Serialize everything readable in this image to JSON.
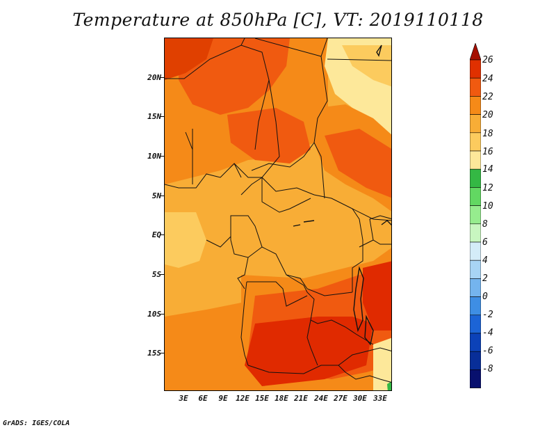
{
  "title": "Temperature at 850hPa [C], VT: 2019110118",
  "footer": "GrADS: IGES/COLA",
  "lat_labels": [
    "20N",
    "15N",
    "10N",
    "5N",
    "EQ",
    "5S",
    "10S",
    "15S"
  ],
  "lon_labels": [
    "3E",
    "6E",
    "9E",
    "12E",
    "15E",
    "18E",
    "21E",
    "24E",
    "27E",
    "30E",
    "33E"
  ],
  "colorbar": {
    "labels": [
      "26",
      "24",
      "22",
      "20",
      "18",
      "16",
      "14",
      "12",
      "10",
      "8",
      "6",
      "4",
      "2",
      "0",
      "-2",
      "-4",
      "-6",
      "-8"
    ],
    "colors": [
      "#a50f00",
      "#e03000",
      "#f05a10",
      "#f58a18",
      "#f8ad36",
      "#fccb5e",
      "#fde89a",
      "#34b844",
      "#62d862",
      "#96ec8e",
      "#c8f6c0",
      "#d4ecf8",
      "#a8d4f4",
      "#74b4ee",
      "#3e8ee4",
      "#1c64d6",
      "#0c42b8",
      "#082e98",
      "#08106e",
      "#d8d8f0"
    ]
  },
  "map_colors": {
    "deep": "#e02a00",
    "orange_red": "#f05a10",
    "orange": "#f58a18",
    "amber": "#f8ad36",
    "light": "#fccb5e",
    "pale": "#fde89a",
    "green": "#34b844"
  }
}
